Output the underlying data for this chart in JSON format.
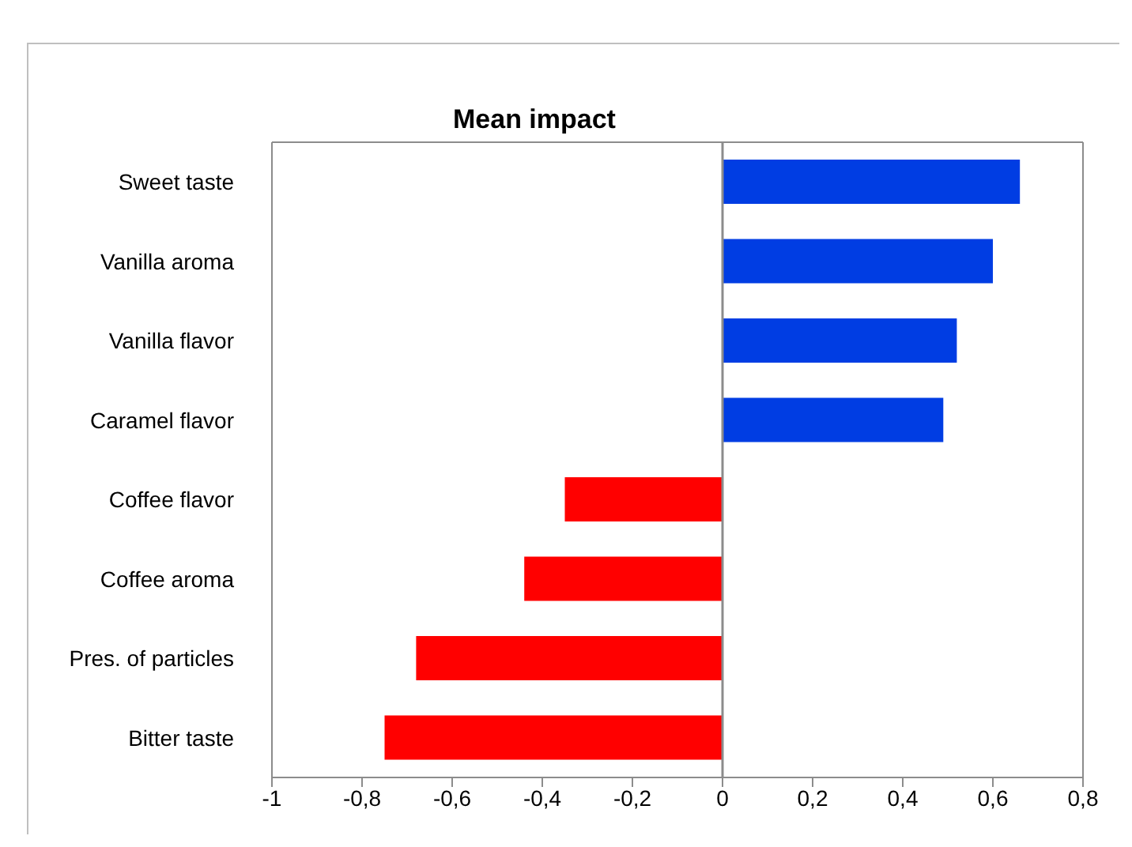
{
  "chart_data": {
    "type": "bar",
    "orientation": "horizontal",
    "title": "Mean impact",
    "categories": [
      "Sweet taste",
      "Vanilla aroma",
      "Vanilla flavor",
      "Caramel flavor",
      "Coffee flavor",
      "Coffee aroma",
      "Pres. of particles",
      "Bitter taste"
    ],
    "values": [
      0.66,
      0.6,
      0.52,
      0.49,
      -0.35,
      -0.44,
      -0.68,
      -0.75
    ],
    "colors": [
      "#003de3",
      "#003de3",
      "#003de3",
      "#003de3",
      "#ff0000",
      "#ff0000",
      "#ff0000",
      "#ff0000"
    ],
    "xlim": [
      -1,
      0.8
    ],
    "xticks": [
      -1,
      {
        "value": -0.8,
        "label": "-0,8"
      },
      {
        "value": -0.6,
        "label": "-0,6"
      },
      {
        "value": -0.4,
        "label": "-0,4"
      },
      {
        "value": -0.2,
        "label": "-0,2"
      },
      0,
      {
        "value": 0.2,
        "label": "0,2"
      },
      {
        "value": 0.4,
        "label": "0,4"
      },
      {
        "value": 0.6,
        "label": "0,6"
      },
      {
        "value": 0.8,
        "label": "0,8"
      }
    ]
  }
}
